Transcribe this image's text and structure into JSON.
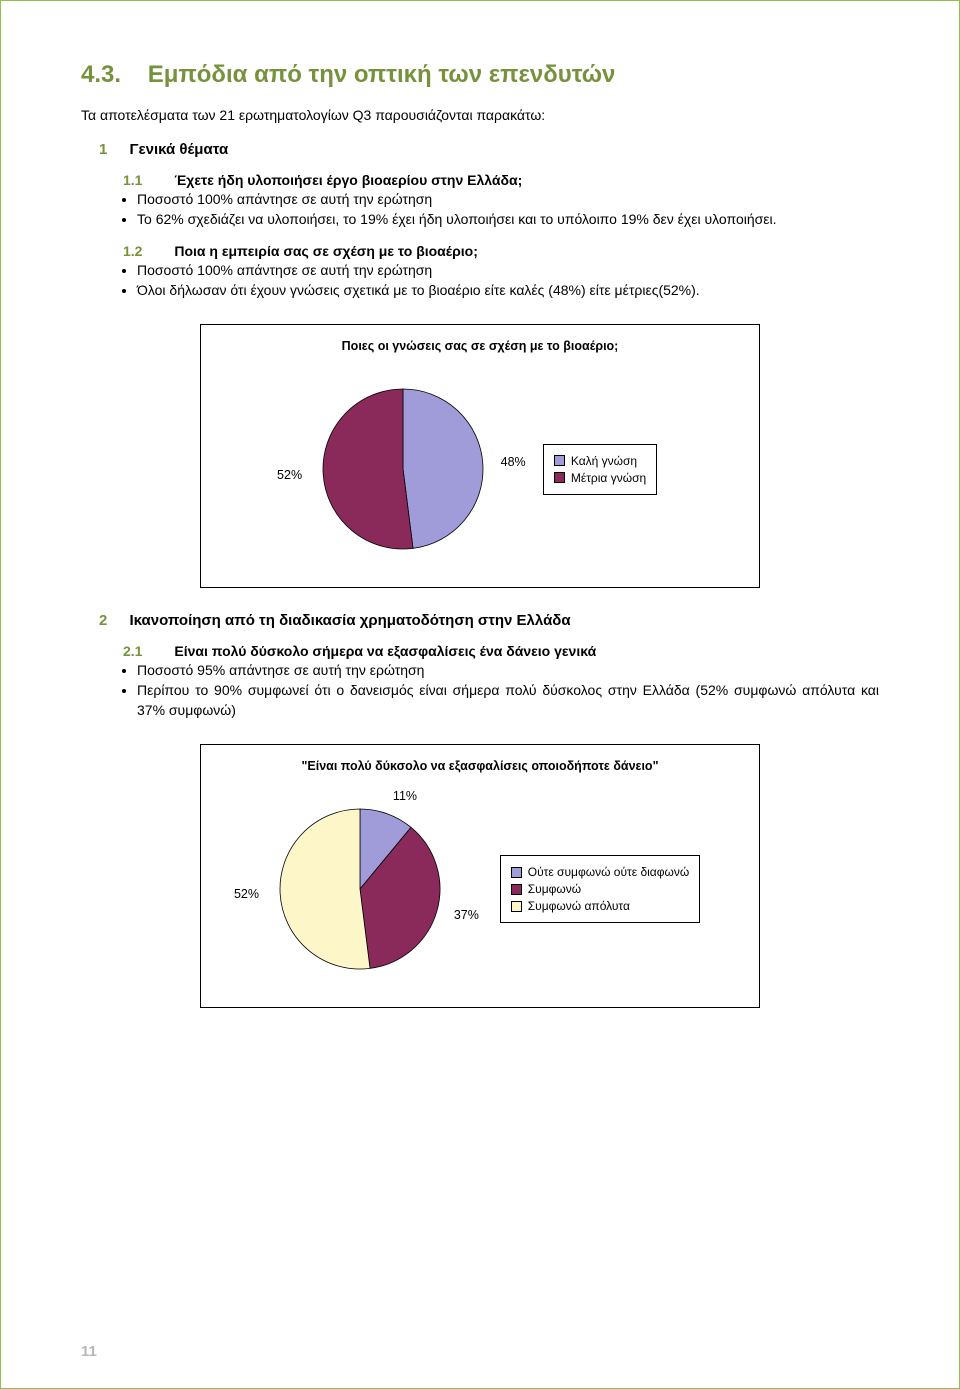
{
  "section": {
    "number": "4.3.",
    "title": "Εμπόδια από την οπτική των επενδυτών"
  },
  "intro": "Τα αποτελέσματα των 21 ερωτηματολογίων Q3 παρουσιάζονται παρακάτω:",
  "block1": {
    "idx": "1",
    "title": "Γενικά θέματα",
    "q1_1": {
      "idx": "1.1",
      "title": "Έχετε ήδη υλοποιήσει έργο βιοαερίου στην Ελλάδα;",
      "bullets": [
        "Ποσοστό 100% απάντησε σε αυτή την ερώτηση",
        "Το 62% σχεδιάζει να υλοποιήσει, το 19% έχει ήδη υλοποιήσει και το υπόλοιπο 19% δεν έχει υλοποιήσει."
      ]
    },
    "q1_2": {
      "idx": "1.2",
      "title": "Ποια η εμπειρία σας σε σχέση με το βιοαέριο;",
      "bullets": [
        "Ποσοστό 100% απάντησε σε αυτή την ερώτηση",
        "Όλοι δήλωσαν ότι έχουν γνώσεις σχετικά με το βιοαέριο είτε καλές (48%) είτε μέτριες(52%)."
      ]
    }
  },
  "chart1": {
    "type": "pie",
    "title": "Ποιες οι γνώσεις σας σε σχέση με το βιοαέριο;",
    "slices": [
      {
        "label": "Καλή γνώση",
        "pct": 48,
        "color": "#9f9cd9",
        "data_label": "48%"
      },
      {
        "label": "Μέτρια γνώση",
        "pct": 52,
        "color": "#8a2a5a",
        "data_label": "52%"
      }
    ],
    "label_fontsize": 12.5,
    "border_color": "#000000",
    "background_color": "#ffffff"
  },
  "block2": {
    "idx": "2",
    "title": "Ικανοποίηση από τη διαδικασία χρηματοδότηση στην Ελλάδα",
    "q2_1": {
      "idx": "2.1",
      "title": "Είναι πολύ δύσκολο σήμερα να εξασφαλίσεις ένα δάνειο γενικά",
      "bullets": [
        "Ποσοστό 95% απάντησε σε αυτή την ερώτηση",
        "Περίπου το 90% συμφωνεί ότι ο δανεισμός είναι σήμερα πολύ δύσκολος στην Ελλάδα (52% συμφωνώ απόλυτα και 37% συμφωνώ)"
      ]
    }
  },
  "chart2": {
    "type": "pie",
    "title": "\"Είναι πολύ δύκσολο να εξασφαλίσεις οποιοδήποτε δάνειο\"",
    "slices": [
      {
        "label": "Ούτε συμφωνώ ούτε διαφωνώ",
        "pct": 11,
        "color": "#9f9cd9",
        "data_label": "11%"
      },
      {
        "label": "Συμφωνώ",
        "pct": 37,
        "color": "#8a2a5a",
        "data_label": "37%"
      },
      {
        "label": "Συμφωνώ απόλυτα",
        "pct": 52,
        "color": "#fdf6c8",
        "data_label": "52%"
      }
    ],
    "label_fontsize": 12.5,
    "border_color": "#000000",
    "background_color": "#ffffff"
  },
  "page_number": "11",
  "colors": {
    "heading_green": "#76923c",
    "page_border": "#8bc34a",
    "page_num_gray": "#b7b7b7"
  }
}
